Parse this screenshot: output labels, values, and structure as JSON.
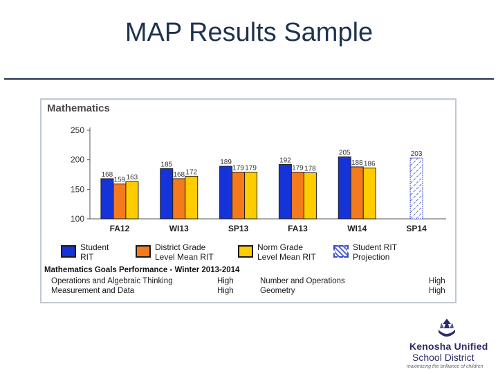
{
  "slide": {
    "title": "MAP Results Sample"
  },
  "chart_data": {
    "type": "bar",
    "title": "Mathematics",
    "categories": [
      "FA12",
      "WI13",
      "SP13",
      "FA13",
      "WI14",
      "SP14"
    ],
    "series": [
      {
        "name": "Student RIT",
        "color": "#1433d8",
        "values": [
          168,
          185,
          189,
          192,
          205,
          null
        ]
      },
      {
        "name": "District Grade Level Mean RIT",
        "color": "#f47a1e",
        "values": [
          159,
          168,
          179,
          179,
          188,
          null
        ]
      },
      {
        "name": "Norm Grade Level Mean RIT",
        "color": "#ffcc00",
        "values": [
          163,
          172,
          179,
          178,
          186,
          null
        ]
      },
      {
        "name": "Student RIT Projection",
        "color": "#5a6ad8",
        "pattern": "dashed-hatch",
        "values": [
          null,
          null,
          null,
          null,
          null,
          203
        ]
      }
    ],
    "value_labels": [
      [
        "168",
        "159",
        "163"
      ],
      [
        "185",
        "168",
        "172"
      ],
      [
        "189",
        "179",
        "179"
      ],
      [
        "192",
        "179",
        "178"
      ],
      [
        "205",
        "188",
        "186"
      ],
      [
        "203"
      ]
    ],
    "yticks": [
      100,
      150,
      200,
      250
    ],
    "ylim": [
      100,
      250
    ],
    "grid": false,
    "legend_position": "bottom"
  },
  "legend": [
    {
      "line1": "Student",
      "line2": "RIT"
    },
    {
      "line1": "District Grade",
      "line2": "Level Mean RIT"
    },
    {
      "line1": "Norm Grade",
      "line2": "Level Mean RIT"
    },
    {
      "line1": "Student RIT",
      "line2": "Projection"
    }
  ],
  "goals": {
    "title": "Mathematics Goals Performance - Winter 2013-2014",
    "items": [
      {
        "name": "Operations and Algebraic Thinking",
        "level": "High"
      },
      {
        "name": "Number and Operations",
        "level": "High"
      },
      {
        "name": "Measurement and Data",
        "level": "High"
      },
      {
        "name": "Geometry",
        "level": "High"
      }
    ]
  },
  "logo": {
    "name_line1": "Kenosha Unified",
    "name_line2": "School District",
    "tagline": "maximizing the brilliance of children",
    "color": "#2d2a6e"
  }
}
